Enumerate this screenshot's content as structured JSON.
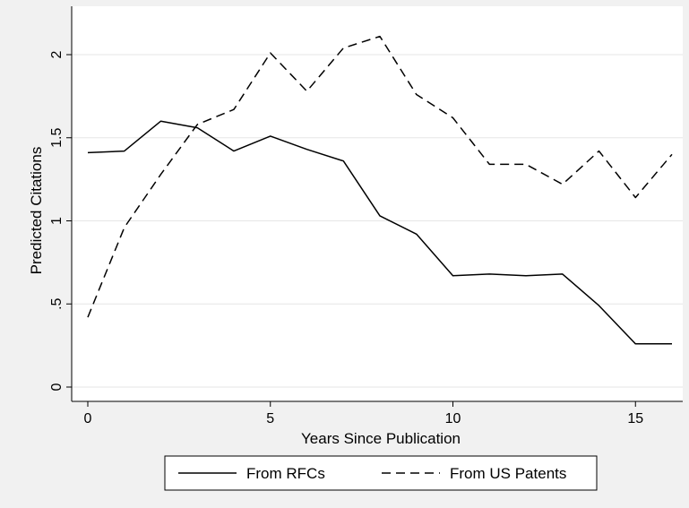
{
  "chart_data": {
    "type": "line",
    "title": "",
    "xlabel": "Years Since Publication",
    "ylabel": "Predicted Citations",
    "xlim": [
      0,
      16
    ],
    "ylim": [
      0,
      2.2
    ],
    "xticks": [
      0,
      5,
      10,
      15
    ],
    "xtick_labels": [
      "0",
      "5",
      "10",
      "15"
    ],
    "yticks": [
      0,
      0.5,
      1,
      1.5,
      2
    ],
    "ytick_labels": [
      "0",
      ".5",
      "1",
      "1.5",
      "2"
    ],
    "grid": true,
    "legend_position": "bottom",
    "x": [
      0,
      1,
      2,
      3,
      4,
      5,
      6,
      7,
      8,
      9,
      10,
      11,
      12,
      13,
      14,
      15,
      16
    ],
    "series": [
      {
        "name": "From RFCs",
        "style": "solid",
        "color": "#000000",
        "values": [
          1.41,
          1.42,
          1.6,
          1.56,
          1.42,
          1.51,
          1.43,
          1.36,
          1.03,
          0.92,
          0.67,
          0.68,
          0.67,
          0.68,
          0.49,
          0.26,
          0.26
        ]
      },
      {
        "name": "From US Patents",
        "style": "dashed",
        "color": "#000000",
        "values": [
          0.42,
          0.96,
          1.28,
          1.58,
          1.67,
          2.01,
          1.78,
          2.04,
          2.11,
          1.76,
          1.62,
          1.34,
          1.34,
          1.22,
          1.42,
          1.14,
          1.4
        ]
      }
    ]
  }
}
